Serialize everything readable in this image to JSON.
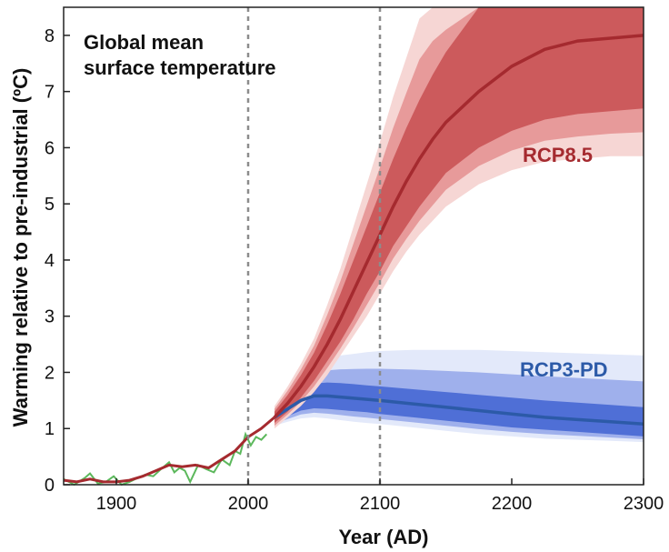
{
  "chart_data": {
    "type": "line",
    "title_lines": [
      "Global mean",
      "surface temperature"
    ],
    "xlabel": "Year (AD)",
    "ylabel": "Warming relative to pre-industrial (ºC)",
    "xlim": [
      1860,
      2300
    ],
    "ylim": [
      0,
      8.5
    ],
    "xticks": [
      1900,
      2000,
      2100,
      2200,
      2300
    ],
    "yticks": [
      0,
      1,
      2,
      3,
      4,
      5,
      6,
      7,
      8
    ],
    "grid": false,
    "legend": "none",
    "vertical_reference_lines": [
      2000,
      2100
    ],
    "colors": {
      "rcp85_line": "#a52a2f",
      "rcp85_band_inner": "#cc5a5c",
      "rcp85_band_mid": "#e79a9a",
      "rcp85_band_outer": "#f6d6d4",
      "rcp3pd_line": "#2c5aa8",
      "rcp3pd_band_inner": "#4f6fd6",
      "rcp3pd_band_mid": "#9fb0ec",
      "rcp3pd_band_outer": "#e3e9fa",
      "observed": "#5cb85c",
      "reference_line": "#8c8c8c"
    },
    "series": [
      {
        "name": "RCP8.5",
        "x": [
          2020,
          2030,
          2040,
          2050,
          2060,
          2070,
          2080,
          2090,
          2100,
          2110,
          2120,
          2130,
          2140,
          2150,
          2175,
          2200,
          2225,
          2250,
          2275,
          2300
        ],
        "values": [
          1.2,
          1.45,
          1.75,
          2.1,
          2.5,
          2.95,
          3.45,
          3.95,
          4.45,
          4.95,
          5.4,
          5.8,
          6.15,
          6.45,
          7.0,
          7.45,
          7.75,
          7.9,
          7.95,
          8.0
        ],
        "band_inner_low": [
          1.1,
          1.3,
          1.55,
          1.85,
          2.2,
          2.55,
          2.95,
          3.4,
          3.8,
          4.25,
          4.6,
          4.95,
          5.25,
          5.55,
          6.0,
          6.3,
          6.5,
          6.6,
          6.65,
          6.7
        ],
        "band_inner_high": [
          1.3,
          1.6,
          1.95,
          2.35,
          2.85,
          3.4,
          4.0,
          4.6,
          5.2,
          5.8,
          6.35,
          6.85,
          7.3,
          7.7,
          8.5,
          8.5,
          8.5,
          8.5,
          8.5,
          8.5
        ],
        "band_outer_low": [
          1.0,
          1.2,
          1.4,
          1.65,
          1.95,
          2.3,
          2.65,
          3.0,
          3.4,
          3.8,
          4.15,
          4.45,
          4.7,
          4.95,
          5.35,
          5.6,
          5.75,
          5.8,
          5.85,
          5.85
        ],
        "band_outer_high": [
          1.4,
          1.75,
          2.15,
          2.6,
          3.2,
          3.85,
          4.6,
          5.35,
          6.1,
          6.9,
          7.6,
          8.3,
          8.5,
          8.5,
          8.5,
          8.5,
          8.5,
          8.5,
          8.5,
          8.5
        ]
      },
      {
        "name": "RCP3-PD",
        "x": [
          2020,
          2030,
          2040,
          2050,
          2060,
          2070,
          2080,
          2090,
          2100,
          2125,
          2150,
          2175,
          2200,
          2225,
          2250,
          2275,
          2300
        ],
        "values": [
          1.2,
          1.35,
          1.5,
          1.58,
          1.58,
          1.56,
          1.54,
          1.52,
          1.5,
          1.44,
          1.38,
          1.32,
          1.26,
          1.2,
          1.16,
          1.12,
          1.08
        ],
        "band_inner_low": [
          1.12,
          1.22,
          1.32,
          1.36,
          1.35,
          1.33,
          1.31,
          1.29,
          1.26,
          1.2,
          1.14,
          1.08,
          1.02,
          0.98,
          0.94,
          0.9,
          0.86
        ],
        "band_inner_high": [
          1.28,
          1.48,
          1.68,
          1.8,
          1.82,
          1.81,
          1.79,
          1.77,
          1.75,
          1.7,
          1.65,
          1.6,
          1.55,
          1.5,
          1.46,
          1.42,
          1.38
        ],
        "band_outer_low": [
          1.05,
          1.12,
          1.18,
          1.2,
          1.18,
          1.15,
          1.12,
          1.1,
          1.08,
          1.02,
          0.96,
          0.9,
          0.86,
          0.82,
          0.8,
          0.78,
          0.76
        ],
        "band_outer_high": [
          1.35,
          1.65,
          1.95,
          2.15,
          2.25,
          2.3,
          2.33,
          2.36,
          2.38,
          2.4,
          2.4,
          2.4,
          2.38,
          2.36,
          2.34,
          2.32,
          2.3
        ]
      },
      {
        "name": "",
        "kind": "historical",
        "x": [
          1860,
          1870,
          1880,
          1890,
          1900,
          1910,
          1920,
          1930,
          1940,
          1950,
          1960,
          1970,
          1980,
          1990,
          2000,
          2010,
          2020
        ],
        "values": [
          0.08,
          0.05,
          0.1,
          0.05,
          0.05,
          0.08,
          0.15,
          0.25,
          0.35,
          0.32,
          0.35,
          0.3,
          0.45,
          0.6,
          0.85,
          1.0,
          1.2
        ]
      },
      {
        "name": "",
        "kind": "observed",
        "x": [
          1860,
          1868,
          1876,
          1880,
          1886,
          1892,
          1898,
          1904,
          1910,
          1916,
          1922,
          1928,
          1934,
          1940,
          1944,
          1948,
          1952,
          1956,
          1962,
          1968,
          1974,
          1980,
          1986,
          1990,
          1994,
          1998,
          2002,
          2006,
          2010,
          2014
        ],
        "values": [
          0.1,
          0.0,
          0.12,
          0.2,
          0.02,
          0.05,
          0.15,
          -0.02,
          0.05,
          0.12,
          0.18,
          0.15,
          0.28,
          0.4,
          0.22,
          0.3,
          0.25,
          0.05,
          0.35,
          0.28,
          0.22,
          0.45,
          0.35,
          0.6,
          0.55,
          0.9,
          0.7,
          0.85,
          0.8,
          0.9
        ]
      }
    ]
  }
}
